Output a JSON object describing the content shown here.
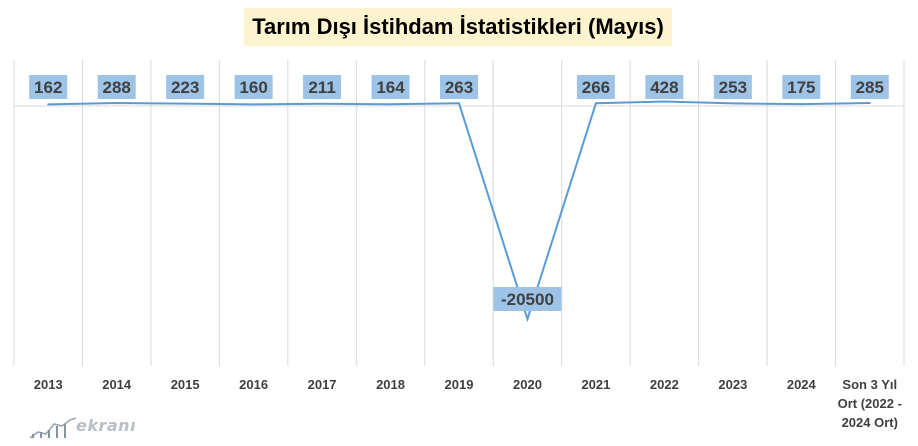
{
  "title": "Tarım Dışı İstihdam İstatistikleri (Mayıs)",
  "logo": {
    "text": "ekranı",
    "icon": "chart-line-logo-icon"
  },
  "colors": {
    "line": "#5b9bd5",
    "label_bg": "#9dc3e6",
    "label_text": "#404040",
    "grid": "#d9d9d9",
    "title_bg": "#fdf3cf",
    "tick_text": "#404040"
  },
  "chart_data": {
    "type": "line",
    "title": "Tarım Dışı İstihdam İstatistikleri (Mayıs)",
    "xlabel": "",
    "ylabel": "",
    "grid": "vertical",
    "legend": "none",
    "categories": [
      [
        "2013"
      ],
      [
        "2014"
      ],
      [
        "2015"
      ],
      [
        "2016"
      ],
      [
        "2017"
      ],
      [
        "2018"
      ],
      [
        "2019"
      ],
      [
        "2020"
      ],
      [
        "2021"
      ],
      [
        "2022"
      ],
      [
        "2023"
      ],
      [
        "2024"
      ],
      [
        "Son 3 Yıl",
        "Ort (2022 -",
        "2024 Ort)"
      ]
    ],
    "values": [
      162,
      288,
      223,
      160,
      211,
      164,
      263,
      -20500,
      266,
      428,
      253,
      175,
      285
    ],
    "data_labels": [
      "162",
      "288",
      "223",
      "160",
      "211",
      "164",
      "263",
      "-20500",
      "266",
      "428",
      "253",
      "175",
      "285"
    ],
    "ylim": [
      -25000,
      0
    ]
  }
}
